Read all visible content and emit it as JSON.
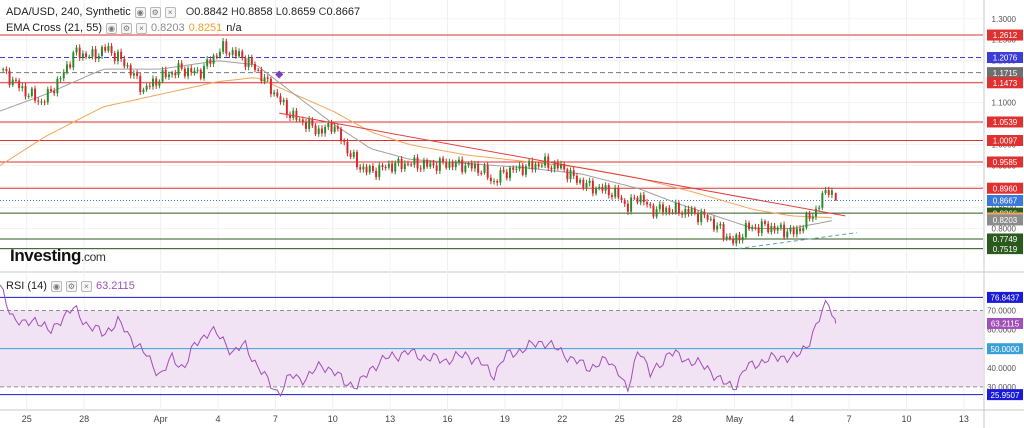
{
  "header": {
    "symbol": "ADA/USD, 240, Synthetic",
    "open_label": "O",
    "open": "0.8842",
    "high_label": "H",
    "high": "0.8858",
    "low_label": "L",
    "low": "0.8659",
    "close_label": "C",
    "close": "0.8667",
    "ema_name": "EMA Cross (21, 55)",
    "ema_fast_value": "0.8203",
    "ema_slow_value": "0.8251",
    "ema_extra": "n/a"
  },
  "rsi_header": {
    "name": "RSI (14)",
    "value": "63.2115"
  },
  "logo": {
    "main": "Investing",
    "suffix": ".com"
  },
  "colors": {
    "up_candle": "#2a8a2a",
    "down_candle": "#d62a2a",
    "resistance": "#e03030",
    "blue_dashed": "#3c3cd8",
    "gray_dashed": "#7a7a7a",
    "ema_fast": "#a0a0a0",
    "ema_slow": "#f5a55a",
    "trendline": "#e04040",
    "rsi_line": "#a050b8",
    "rsi_band": "#f1e2f4",
    "rsi_upper": "#1a1ad8",
    "rsi_lower": "#1a1ad8"
  },
  "chart_data": [
    {
      "type": "candlestick",
      "title": "ADA/USD, 240, Synthetic",
      "ylim": [
        0.72,
        1.34
      ],
      "y_ticks": [
        "1.3000",
        "1.2500",
        "1.2000",
        "1.1500",
        "1.1000",
        "1.0500",
        "1.0000",
        "0.9500",
        "0.9000",
        "0.8500",
        "0.8000",
        "0.7500"
      ],
      "x_tick_labels": [
        "25",
        "28",
        "Apr",
        "4",
        "7",
        "10",
        "13",
        "16",
        "19",
        "22",
        "25",
        "28",
        "May",
        "4",
        "7",
        "10",
        "13"
      ],
      "x_tick_days": [
        -7,
        -4,
        0,
        3,
        6,
        9,
        12,
        15,
        18,
        21,
        24,
        27,
        30,
        33,
        36,
        39,
        42
      ],
      "x_range_days": [
        -8.4,
        43
      ],
      "horizontal_levels": [
        {
          "value": 1.2612,
          "label": "1.2612",
          "style": "solid",
          "color": "#e03030"
        },
        {
          "value": 1.2076,
          "label": "1.2076",
          "style": "dashed",
          "color": "#3c3cd8"
        },
        {
          "value": 1.1715,
          "label": "1.1715",
          "style": "dashed",
          "color": "#7a7a7a"
        },
        {
          "value": 1.1473,
          "label": "1.1473",
          "style": "solid",
          "color": "#e03030"
        },
        {
          "value": 1.0539,
          "label": "1.0539",
          "style": "solid",
          "color": "#e03030"
        },
        {
          "value": 1.0097,
          "label": "1.0097",
          "style": "solid",
          "color": "#e03030"
        },
        {
          "value": 0.9585,
          "label": "0.9585",
          "style": "solid",
          "color": "#e03030"
        },
        {
          "value": 0.896,
          "label": "0.8960",
          "style": "solid",
          "color": "#e03030"
        },
        {
          "value": 0.8667,
          "label": "0.8667",
          "style": "dotted",
          "color": "#3c78d8"
        },
        {
          "value": 0.8366,
          "label": "0.8366",
          "style": "solid",
          "color": "#2b5a1e"
        },
        {
          "value": 0.7749,
          "label": "0.7749",
          "style": "solid",
          "color": "#2b5a1e"
        },
        {
          "value": 0.7519,
          "label": "0.7519",
          "style": "solid",
          "color": "#2b5a1e"
        }
      ],
      "price_tags": [
        {
          "value": 1.2612,
          "label": "1.2612",
          "bg": "#e03030",
          "fg": "#ffffff"
        },
        {
          "value": 1.2076,
          "label": "1.2076",
          "bg": "#3c3cd8",
          "fg": "#ffffff"
        },
        {
          "value": 1.1715,
          "label": "1.1715",
          "bg": "#6e6e6e",
          "fg": "#ffffff"
        },
        {
          "value": 1.1473,
          "label": "1.1473",
          "bg": "#e03030",
          "fg": "#ffffff"
        },
        {
          "value": 1.0539,
          "label": "1.0539",
          "bg": "#e03030",
          "fg": "#ffffff"
        },
        {
          "value": 1.0097,
          "label": "1.0097",
          "bg": "#e03030",
          "fg": "#ffffff"
        },
        {
          "value": 0.9585,
          "label": "0.9585",
          "bg": "#e03030",
          "fg": "#ffffff"
        },
        {
          "value": 0.896,
          "label": "0.8960",
          "bg": "#e03030",
          "fg": "#ffffff"
        },
        {
          "value": 0.8667,
          "label": "0.8667",
          "bg": "#3c78d8",
          "fg": "#ffffff"
        },
        {
          "value": 0.8366,
          "label": "0.8366",
          "bg": "#2b5a1e",
          "fg": "#ffffff"
        },
        {
          "value": 0.8251,
          "label": "0.8251",
          "bg": "#f5a55a",
          "fg": "#ffffff"
        },
        {
          "value": 0.8203,
          "label": "0.8203",
          "bg": "#8c8c8c",
          "fg": "#ffffff"
        },
        {
          "value": 0.7749,
          "label": "0.7749",
          "bg": "#2b5a1e",
          "fg": "#ffffff"
        },
        {
          "value": 0.7519,
          "label": "0.7519",
          "bg": "#2b5a1e",
          "fg": "#ffffff"
        }
      ],
      "price_anchors": [
        [
          -8.4,
          1.18
        ],
        [
          -7.2,
          1.13
        ],
        [
          -6.2,
          1.1
        ],
        [
          -5.2,
          1.16
        ],
        [
          -4.5,
          1.22
        ],
        [
          -3.6,
          1.21
        ],
        [
          -2.8,
          1.23
        ],
        [
          -1.8,
          1.19
        ],
        [
          -0.9,
          1.13
        ],
        [
          0.0,
          1.16
        ],
        [
          1.0,
          1.18
        ],
        [
          2.0,
          1.17
        ],
        [
          2.6,
          1.2
        ],
        [
          3.2,
          1.23
        ],
        [
          4.2,
          1.21
        ],
        [
          5.0,
          1.18
        ],
        [
          6.0,
          1.12
        ],
        [
          6.8,
          1.07
        ],
        [
          7.6,
          1.05
        ],
        [
          8.4,
          1.03
        ],
        [
          9.0,
          1.05
        ],
        [
          9.6,
          1.0
        ],
        [
          10.3,
          0.95
        ],
        [
          11.0,
          0.935
        ],
        [
          12.0,
          0.95
        ],
        [
          13.0,
          0.955
        ],
        [
          14.0,
          0.95
        ],
        [
          15.0,
          0.955
        ],
        [
          16.0,
          0.95
        ],
        [
          16.8,
          0.94
        ],
        [
          17.4,
          0.91
        ],
        [
          18.0,
          0.935
        ],
        [
          19.0,
          0.945
        ],
        [
          20.0,
          0.955
        ],
        [
          21.0,
          0.945
        ],
        [
          21.6,
          0.92
        ],
        [
          22.4,
          0.9
        ],
        [
          23.4,
          0.89
        ],
        [
          24.0,
          0.875
        ],
        [
          24.4,
          0.85
        ],
        [
          25.0,
          0.88
        ],
        [
          25.6,
          0.845
        ],
        [
          26.6,
          0.845
        ],
        [
          27.6,
          0.84
        ],
        [
          28.6,
          0.825
        ],
        [
          29.4,
          0.79
        ],
        [
          30.0,
          0.765
        ],
        [
          30.6,
          0.8
        ],
        [
          31.6,
          0.805
        ],
        [
          32.6,
          0.795
        ],
        [
          33.2,
          0.79
        ],
        [
          33.8,
          0.82
        ],
        [
          34.3,
          0.845
        ],
        [
          34.9,
          0.9
        ],
        [
          35.3,
          0.8667
        ]
      ],
      "last_candle": {
        "open": 0.8842,
        "high": 0.8858,
        "low": 0.8659,
        "close": 0.8667
      },
      "ema_fast_anchors": [
        [
          -8.4,
          1.08
        ],
        [
          -6,
          1.12
        ],
        [
          -3,
          1.18
        ],
        [
          0,
          1.18
        ],
        [
          3,
          1.2
        ],
        [
          5,
          1.19
        ],
        [
          7,
          1.12
        ],
        [
          9,
          1.05
        ],
        [
          11,
          0.99
        ],
        [
          13,
          0.965
        ],
        [
          16,
          0.955
        ],
        [
          19,
          0.945
        ],
        [
          22,
          0.93
        ],
        [
          25,
          0.895
        ],
        [
          27,
          0.86
        ],
        [
          29,
          0.83
        ],
        [
          31,
          0.8
        ],
        [
          33,
          0.8
        ],
        [
          35.3,
          0.8203
        ]
      ],
      "ema_slow_anchors": [
        [
          -8.4,
          0.95
        ],
        [
          -6,
          1.02
        ],
        [
          -3,
          1.09
        ],
        [
          0,
          1.12
        ],
        [
          3,
          1.15
        ],
        [
          5,
          1.16
        ],
        [
          7,
          1.12
        ],
        [
          9,
          1.08
        ],
        [
          11,
          1.03
        ],
        [
          13,
          1.0
        ],
        [
          16,
          0.975
        ],
        [
          19,
          0.96
        ],
        [
          22,
          0.945
        ],
        [
          25,
          0.92
        ],
        [
          28,
          0.885
        ],
        [
          31,
          0.845
        ],
        [
          33,
          0.83
        ],
        [
          35.3,
          0.8251
        ]
      ],
      "trendline": [
        [
          6.2,
          1.075
        ],
        [
          35.8,
          0.83
        ]
      ],
      "support_line": [
        [
          30.2,
          0.752
        ],
        [
          36.4,
          0.79
        ]
      ],
      "cross_marker": [
        6.2,
        1.167
      ]
    },
    {
      "type": "line",
      "title": "RSI (14)",
      "ylim": [
        20,
        87
      ],
      "y_ticks": [
        "70.0000",
        "60.0000",
        "50.0000",
        "40.0000",
        "30.0000"
      ],
      "band": [
        30,
        70
      ],
      "levels": [
        {
          "value": 76.8437,
          "label": "76.8437",
          "color": "#1a1ad8"
        },
        {
          "value": 50.0,
          "label": "50.0000",
          "color": "#3aa0d8"
        },
        {
          "value": 25.9507,
          "label": "25.9507",
          "color": "#1a1ad8"
        }
      ],
      "last_value": 63.2115,
      "value_anchors": [
        [
          -8.4,
          82
        ],
        [
          -7.8,
          68
        ],
        [
          -7.2,
          62
        ],
        [
          -6.5,
          66
        ],
        [
          -5.8,
          58
        ],
        [
          -5.2,
          66
        ],
        [
          -4.5,
          71
        ],
        [
          -3.8,
          62
        ],
        [
          -3.0,
          58
        ],
        [
          -2.2,
          64
        ],
        [
          -1.5,
          55
        ],
        [
          -0.8,
          47
        ],
        [
          0.0,
          36
        ],
        [
          0.6,
          45
        ],
        [
          1.2,
          40
        ],
        [
          1.8,
          52
        ],
        [
          2.6,
          60
        ],
        [
          3.2,
          55
        ],
        [
          3.8,
          48
        ],
        [
          4.4,
          52
        ],
        [
          5.0,
          42
        ],
        [
          5.6,
          33
        ],
        [
          6.2,
          26.5
        ],
        [
          6.8,
          36
        ],
        [
          7.6,
          34
        ],
        [
          8.4,
          42
        ],
        [
          9.0,
          38
        ],
        [
          9.6,
          33
        ],
        [
          10.3,
          30
        ],
        [
          11.0,
          40
        ],
        [
          12.0,
          46
        ],
        [
          13.0,
          48
        ],
        [
          14.0,
          45
        ],
        [
          15.0,
          44
        ],
        [
          16.0,
          47
        ],
        [
          16.8,
          42
        ],
        [
          17.4,
          36
        ],
        [
          18.0,
          46
        ],
        [
          19.0,
          50
        ],
        [
          20.0,
          54
        ],
        [
          21.0,
          48
        ],
        [
          21.6,
          44
        ],
        [
          22.4,
          40
        ],
        [
          23.4,
          44
        ],
        [
          24.0,
          38
        ],
        [
          24.4,
          26
        ],
        [
          25.0,
          52
        ],
        [
          25.6,
          36
        ],
        [
          26.6,
          48
        ],
        [
          27.6,
          44
        ],
        [
          28.6,
          40
        ],
        [
          29.4,
          32
        ],
        [
          30.0,
          30
        ],
        [
          30.6,
          40
        ],
        [
          31.6,
          44
        ],
        [
          32.6,
          46
        ],
        [
          33.2,
          45
        ],
        [
          33.8,
          52
        ],
        [
          34.3,
          62
        ],
        [
          34.9,
          76
        ],
        [
          35.3,
          63.2115
        ]
      ]
    }
  ]
}
